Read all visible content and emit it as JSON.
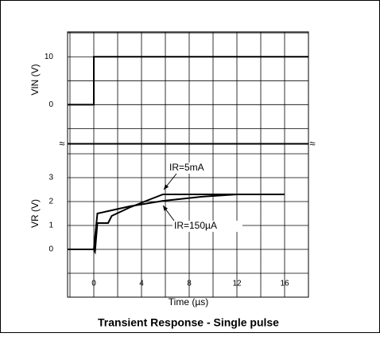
{
  "chart_data": [
    {
      "type": "line",
      "ylabel": "VIN (V)",
      "x": [
        -2.2,
        0,
        0,
        18
      ],
      "series": [
        {
          "name": "VIN",
          "color": "#000000",
          "values": [
            0,
            0,
            10,
            10
          ]
        }
      ],
      "xlim": [
        -2.2,
        18
      ],
      "ylim": [
        -8.1,
        15.2
      ],
      "yticks": [
        0,
        10
      ],
      "xgrid": [
        -2,
        0,
        2,
        4,
        6,
        8,
        10,
        12,
        14,
        16,
        18
      ],
      "ygrid": [
        15,
        10,
        5,
        0,
        -5
      ]
    },
    {
      "type": "line",
      "ylabel": "VR (V)",
      "xlabel": "Time (µs)",
      "title": "Transient Response - Single pulse",
      "series": [
        {
          "name": "IR=5mA",
          "color": "#000000",
          "x": [
            -2.2,
            0,
            0.1,
            0.3,
            1.2,
            1.5,
            3,
            4.5,
            5.8,
            16
          ],
          "values": [
            0,
            0,
            -0.1,
            1.1,
            1.1,
            1.4,
            1.75,
            2.05,
            2.3,
            2.3
          ]
        },
        {
          "name": "IR=150µA",
          "color": "#000000",
          "x": [
            0,
            0.3,
            1.2,
            3,
            5.8,
            9,
            12,
            16
          ],
          "values": [
            0,
            1.5,
            1.6,
            1.8,
            2.03,
            2.2,
            2.3,
            2.3
          ]
        }
      ],
      "xlim": [
        -2.2,
        18
      ],
      "ylim": [
        -2,
        4.4
      ],
      "yticks": [
        0,
        1,
        2,
        3
      ],
      "xticks": [
        0,
        4,
        8,
        12,
        16
      ],
      "xgrid": [
        -2,
        0,
        2,
        4,
        6,
        8,
        10,
        12,
        14,
        16,
        18
      ],
      "ygrid": [
        4,
        3,
        2,
        1,
        0,
        -1,
        -2
      ]
    }
  ]
}
